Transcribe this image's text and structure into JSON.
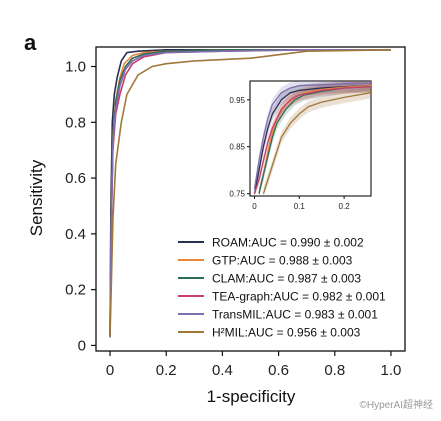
{
  "panel_label": "a",
  "watermark": "©HyperAI超神经",
  "chart_data": {
    "type": "line",
    "kind": "ROC curves",
    "xlabel": "1-specificity",
    "ylabel": "Sensitivity",
    "xlim": [
      -0.05,
      1.05
    ],
    "ylim": [
      -0.02,
      1.07
    ],
    "xticks": [
      0,
      0.2,
      0.4,
      0.6,
      0.8,
      1.0
    ],
    "xtick_labels": [
      "0",
      "0.2",
      "0.4",
      "0.6",
      "0.8",
      "1.0"
    ],
    "yticks": [
      0,
      0.2,
      0.4,
      0.6,
      0.8,
      1.0
    ],
    "ytick_labels": [
      "0",
      "0.2",
      "0.4",
      "0.6",
      "0.8",
      "1.0"
    ],
    "grid": false,
    "legend_position": "bottom-right",
    "series": [
      {
        "name": "ROAM:AUC = 0.990 ± 0.002",
        "color": "#2a2f4f",
        "x": [
          0,
          0.003,
          0.008,
          0.015,
          0.025,
          0.04,
          0.06,
          0.1,
          0.2,
          0.4,
          0.7,
          1.0
        ],
        "y": [
          0.03,
          0.5,
          0.8,
          0.9,
          0.96,
          1.02,
          1.05,
          1.055,
          1.06,
          1.06,
          1.06,
          1.06
        ]
      },
      {
        "name": "GTP:AUC = 0.988 ± 0.003",
        "color": "#e8873a",
        "x": [
          0,
          0.004,
          0.01,
          0.02,
          0.035,
          0.05,
          0.08,
          0.12,
          0.2,
          0.4,
          0.7,
          1.0
        ],
        "y": [
          0.03,
          0.45,
          0.75,
          0.88,
          0.96,
          1.01,
          1.04,
          1.05,
          1.055,
          1.06,
          1.06,
          1.06
        ]
      },
      {
        "name": "CLAM:AUC = 0.987 ± 0.003",
        "color": "#2e6e55",
        "x": [
          0,
          0.004,
          0.01,
          0.02,
          0.035,
          0.055,
          0.08,
          0.12,
          0.2,
          0.4,
          0.7,
          1.0
        ],
        "y": [
          0.03,
          0.45,
          0.74,
          0.87,
          0.95,
          1.0,
          1.03,
          1.045,
          1.055,
          1.06,
          1.06,
          1.06
        ]
      },
      {
        "name": "TEA-graph:AUC = 0.982 ± 0.001",
        "color": "#c83f6c",
        "x": [
          0,
          0.004,
          0.01,
          0.02,
          0.035,
          0.055,
          0.08,
          0.12,
          0.2,
          0.4,
          0.7,
          1.0
        ],
        "y": [
          0.03,
          0.4,
          0.7,
          0.83,
          0.9,
          0.97,
          1.01,
          1.035,
          1.05,
          1.055,
          1.06,
          1.06
        ]
      },
      {
        "name": "TransMIL:AUC = 0.983 ± 0.001",
        "color": "#7d6fb0",
        "x": [
          0,
          0.004,
          0.01,
          0.02,
          0.035,
          0.055,
          0.08,
          0.12,
          0.2,
          0.4,
          0.7,
          1.0
        ],
        "y": [
          0.03,
          0.42,
          0.72,
          0.85,
          0.93,
          0.99,
          1.02,
          1.04,
          1.05,
          1.055,
          1.06,
          1.06
        ]
      },
      {
        "name": "H²MIL:AUC = 0.956 ± 0.003",
        "color": "#a0783a",
        "x": [
          0,
          0.004,
          0.01,
          0.02,
          0.04,
          0.06,
          0.1,
          0.15,
          0.2,
          0.3,
          0.5,
          0.7,
          1.0
        ],
        "y": [
          0.03,
          0.2,
          0.45,
          0.65,
          0.8,
          0.9,
          0.97,
          1.0,
          1.01,
          1.02,
          1.03,
          1.055,
          1.06
        ]
      }
    ],
    "inset": {
      "xlim": [
        -0.01,
        0.26
      ],
      "ylim": [
        0.745,
        0.99
      ],
      "xticks": [
        0,
        0.1,
        0.2
      ],
      "xtick_labels": [
        "0",
        "0.1",
        "0.2"
      ],
      "yticks": [
        0.75,
        0.85,
        0.95
      ],
      "ytick_labels": [
        "0.75",
        "0.85",
        "0.95"
      ],
      "series": [
        {
          "name": "ROAM",
          "color": "#2a2f4f",
          "x": [
            0.0,
            0.01,
            0.02,
            0.03,
            0.04,
            0.06,
            0.08,
            0.1,
            0.15,
            0.2,
            0.26
          ],
          "y": [
            0.75,
            0.8,
            0.85,
            0.89,
            0.92,
            0.95,
            0.965,
            0.97,
            0.975,
            0.978,
            0.98
          ]
        },
        {
          "name": "GTP",
          "color": "#e8873a",
          "x": [
            0.01,
            0.02,
            0.03,
            0.04,
            0.05,
            0.07,
            0.09,
            0.11,
            0.15,
            0.2,
            0.26
          ],
          "y": [
            0.75,
            0.79,
            0.84,
            0.88,
            0.91,
            0.94,
            0.955,
            0.965,
            0.972,
            0.977,
            0.98
          ]
        },
        {
          "name": "CLAM",
          "color": "#2e6e55",
          "x": [
            0.01,
            0.02,
            0.03,
            0.04,
            0.05,
            0.07,
            0.09,
            0.11,
            0.15,
            0.2,
            0.26
          ],
          "y": [
            0.75,
            0.79,
            0.83,
            0.87,
            0.9,
            0.93,
            0.95,
            0.96,
            0.968,
            0.975,
            0.978
          ]
        },
        {
          "name": "TEA-graph",
          "color": "#c83f6c",
          "x": [
            0.0,
            0.01,
            0.02,
            0.03,
            0.04,
            0.06,
            0.08,
            0.1,
            0.15,
            0.2,
            0.26
          ],
          "y": [
            0.75,
            0.78,
            0.82,
            0.86,
            0.89,
            0.93,
            0.95,
            0.96,
            0.97,
            0.975,
            0.978
          ]
        },
        {
          "name": "TransMIL",
          "color": "#7d6fb0",
          "x": [
            0.0,
            0.01,
            0.02,
            0.03,
            0.04,
            0.06,
            0.08,
            0.1,
            0.15,
            0.2,
            0.26
          ],
          "y": [
            0.76,
            0.82,
            0.87,
            0.91,
            0.94,
            0.965,
            0.975,
            0.98,
            0.982,
            0.984,
            0.985
          ]
        },
        {
          "name": "H²MIL",
          "color": "#a0783a",
          "x": [
            0.02,
            0.03,
            0.04,
            0.05,
            0.06,
            0.08,
            0.1,
            0.12,
            0.15,
            0.2,
            0.26
          ],
          "y": [
            0.75,
            0.78,
            0.81,
            0.84,
            0.87,
            0.9,
            0.92,
            0.935,
            0.945,
            0.955,
            0.965
          ]
        }
      ]
    }
  }
}
